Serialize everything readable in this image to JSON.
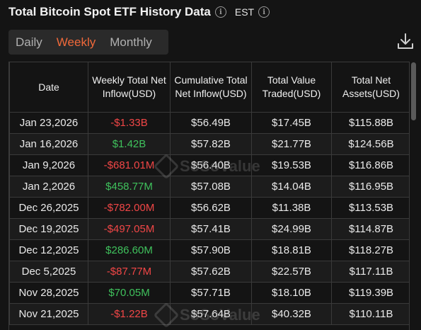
{
  "header": {
    "title": "Total Bitcoin Spot ETF History Data",
    "timezone": "EST"
  },
  "tabs": [
    {
      "label": "Daily",
      "active": false
    },
    {
      "label": "Weekly",
      "active": true
    },
    {
      "label": "Monthly",
      "active": false
    }
  ],
  "table": {
    "columns": [
      "Date",
      "Weekly Total Net Inflow(USD)",
      "Cumulative Total Net Inflow(USD)",
      "Total Value Traded(USD)",
      "Total Net Assets(USD)"
    ],
    "rows": [
      {
        "date": "Jan 23,2026",
        "inflow": "-$1.33B",
        "sign": "neg",
        "cumulative": "$56.49B",
        "traded": "$17.45B",
        "assets": "$115.88B"
      },
      {
        "date": "Jan 16,2026",
        "inflow": "$1.42B",
        "sign": "pos",
        "cumulative": "$57.82B",
        "traded": "$21.77B",
        "assets": "$124.56B"
      },
      {
        "date": "Jan 9,2026",
        "inflow": "-$681.01M",
        "sign": "neg",
        "cumulative": "$56.40B",
        "traded": "$19.53B",
        "assets": "$116.86B"
      },
      {
        "date": "Jan 2,2026",
        "inflow": "$458.77M",
        "sign": "pos",
        "cumulative": "$57.08B",
        "traded": "$14.04B",
        "assets": "$116.95B"
      },
      {
        "date": "Dec 26,2025",
        "inflow": "-$782.00M",
        "sign": "neg",
        "cumulative": "$56.62B",
        "traded": "$11.38B",
        "assets": "$113.53B"
      },
      {
        "date": "Dec 19,2025",
        "inflow": "-$497.05M",
        "sign": "neg",
        "cumulative": "$57.41B",
        "traded": "$24.99B",
        "assets": "$114.87B"
      },
      {
        "date": "Dec 12,2025",
        "inflow": "$286.60M",
        "sign": "pos",
        "cumulative": "$57.90B",
        "traded": "$18.81B",
        "assets": "$118.27B"
      },
      {
        "date": "Dec 5,2025",
        "inflow": "-$87.77M",
        "sign": "neg",
        "cumulative": "$57.62B",
        "traded": "$22.57B",
        "assets": "$117.11B"
      },
      {
        "date": "Nov 28,2025",
        "inflow": "$70.05M",
        "sign": "pos",
        "cumulative": "$57.71B",
        "traded": "$18.10B",
        "assets": "$119.39B"
      },
      {
        "date": "Nov 21,2025",
        "inflow": "-$1.22B",
        "sign": "neg",
        "cumulative": "$57.64B",
        "traded": "$40.32B",
        "assets": "$110.11B"
      }
    ]
  },
  "watermark": {
    "text": "SoSoValue"
  },
  "colors": {
    "accent": "#f0693a",
    "negative": "#f04646",
    "positive": "#3fc15c"
  },
  "icons": {
    "info": "info-icon",
    "download": "download-icon"
  }
}
